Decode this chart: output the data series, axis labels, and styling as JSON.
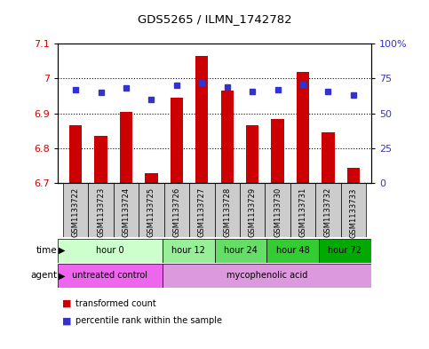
{
  "title": "GDS5265 / ILMN_1742782",
  "samples": [
    "GSM1133722",
    "GSM1133723",
    "GSM1133724",
    "GSM1133725",
    "GSM1133726",
    "GSM1133727",
    "GSM1133728",
    "GSM1133729",
    "GSM1133730",
    "GSM1133731",
    "GSM1133732",
    "GSM1133733"
  ],
  "transformed_counts": [
    6.865,
    6.835,
    6.905,
    6.73,
    6.945,
    7.065,
    6.965,
    6.865,
    6.885,
    7.02,
    6.845,
    6.745
  ],
  "percentile_ranks": [
    67,
    65,
    68,
    60,
    70,
    72,
    69,
    66,
    67,
    71,
    66,
    63
  ],
  "ylim_left": [
    6.7,
    7.1
  ],
  "ylim_right": [
    0,
    100
  ],
  "yticks_left": [
    6.7,
    6.8,
    6.9,
    7.0,
    7.1
  ],
  "ytick_labels_left": [
    "6.7",
    "6.8",
    "6.9",
    "7",
    "7.1"
  ],
  "yticks_right": [
    0,
    25,
    50,
    75,
    100
  ],
  "ytick_labels_right": [
    "0",
    "25",
    "50",
    "75",
    "100%"
  ],
  "bar_color": "#cc0000",
  "dot_color": "#3333cc",
  "grid_color": "black",
  "bar_bottom": 6.7,
  "time_groups": [
    {
      "label": "hour 0",
      "start": 0,
      "end": 4,
      "color": "#ccffcc"
    },
    {
      "label": "hour 12",
      "start": 4,
      "end": 6,
      "color": "#99ee99"
    },
    {
      "label": "hour 24",
      "start": 6,
      "end": 8,
      "color": "#66dd66"
    },
    {
      "label": "hour 48",
      "start": 8,
      "end": 10,
      "color": "#33cc33"
    },
    {
      "label": "hour 72",
      "start": 10,
      "end": 12,
      "color": "#00aa00"
    }
  ],
  "agent_groups": [
    {
      "label": "untreated control",
      "start": 0,
      "end": 4,
      "color": "#ee66ee"
    },
    {
      "label": "mycophenolic acid",
      "start": 4,
      "end": 12,
      "color": "#dd99dd"
    }
  ],
  "sample_bg_color": "#cccccc",
  "plot_bg_color": "#ffffff",
  "outer_bg_color": "#ffffff",
  "bar_width": 0.5
}
